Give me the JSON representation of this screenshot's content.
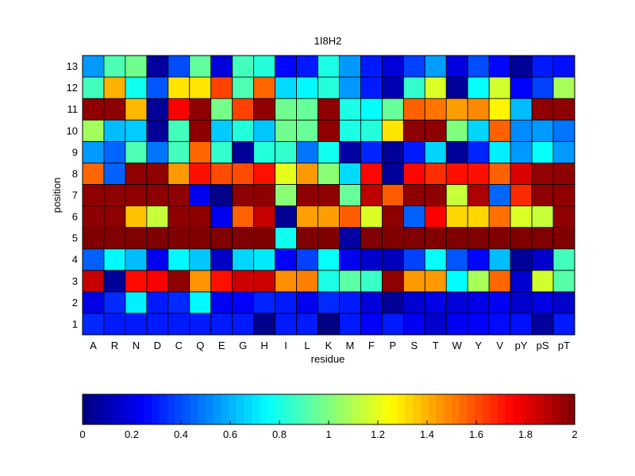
{
  "chart_data": {
    "type": "heatmap",
    "title": "1I8H2",
    "xlabel": "residue",
    "ylabel": "position",
    "x_categories": [
      "A",
      "R",
      "N",
      "D",
      "C",
      "Q",
      "E",
      "G",
      "H",
      "I",
      "L",
      "K",
      "M",
      "F",
      "P",
      "S",
      "T",
      "W",
      "Y",
      "V",
      "pY",
      "pS",
      "pT"
    ],
    "y_categories": [
      "1",
      "2",
      "3",
      "4",
      "5",
      "6",
      "7",
      "8",
      "9",
      "10",
      "11",
      "12",
      "13"
    ],
    "colormap": "jet",
    "clim": [
      0,
      2
    ],
    "colorbar": {
      "location": "bottom",
      "ticks": [
        0,
        0.2,
        0.4,
        0.6,
        0.8,
        1,
        1.2,
        1.4,
        1.6,
        1.8,
        2
      ],
      "tick_labels": [
        "0",
        "0.2",
        "0.4",
        "0.6",
        "0.8",
        "1",
        "1.2",
        "1.4",
        "1.6",
        "1.8",
        "2"
      ]
    },
    "values": [
      [
        0.33,
        0.3,
        0.3,
        0.3,
        0.3,
        0.3,
        0.3,
        0.3,
        0.02,
        0.3,
        0.3,
        0.0,
        0.3,
        0.25,
        0.3,
        0.23,
        0.15,
        0.23,
        0.25,
        0.27,
        0.28,
        0.06,
        0.3
      ],
      [
        0.2,
        0.33,
        0.72,
        0.3,
        0.33,
        0.74,
        0.23,
        0.25,
        0.32,
        0.3,
        0.22,
        0.33,
        0.3,
        0.18,
        0.05,
        0.16,
        0.2,
        0.18,
        0.2,
        0.23,
        0.15,
        0.2,
        0.15
      ],
      [
        1.86,
        0.05,
        1.73,
        1.76,
        1.97,
        1.46,
        1.72,
        1.85,
        1.85,
        1.47,
        1.5,
        0.8,
        0.93,
        0.86,
        1.97,
        1.45,
        1.45,
        0.75,
        1.08,
        1.55,
        0.16,
        1.16,
        0.92
      ],
      [
        0.44,
        0.74,
        0.62,
        0.22,
        0.74,
        0.64,
        0.14,
        0.67,
        0.71,
        0.25,
        0.38,
        0.76,
        0.22,
        0.15,
        0.12,
        0.38,
        0.76,
        0.42,
        0.26,
        0.62,
        0.05,
        0.15,
        0.88
      ],
      [
        2.0,
        2.0,
        2.0,
        2.0,
        2.0,
        2.0,
        2.0,
        2.0,
        2.0,
        0.78,
        2.0,
        2.0,
        0.07,
        2.0,
        2.0,
        2.0,
        2.0,
        2.0,
        2.0,
        2.0,
        2.0,
        2.0,
        2.0
      ],
      [
        1.97,
        1.97,
        1.37,
        1.14,
        1.97,
        1.97,
        0.22,
        1.56,
        1.86,
        0.04,
        1.44,
        1.44,
        1.57,
        1.18,
        1.97,
        0.44,
        1.75,
        1.33,
        1.33,
        1.53,
        1.18,
        1.14,
        1.97
      ],
      [
        1.97,
        1.97,
        1.97,
        1.97,
        1.97,
        0.22,
        0.02,
        1.97,
        1.97,
        1.02,
        1.97,
        1.97,
        0.95,
        1.88,
        1.57,
        1.97,
        1.97,
        1.14,
        1.91,
        0.45,
        1.67,
        1.97,
        1.97
      ],
      [
        1.55,
        0.44,
        1.97,
        1.97,
        1.45,
        1.72,
        1.6,
        1.6,
        1.72,
        1.2,
        1.45,
        1.02,
        0.68,
        1.74,
        0.05,
        1.74,
        1.66,
        1.72,
        1.72,
        1.56,
        1.82,
        1.96,
        1.97
      ],
      [
        0.55,
        0.45,
        0.9,
        0.48,
        0.88,
        1.55,
        0.85,
        0.05,
        0.82,
        0.85,
        0.48,
        0.78,
        0.07,
        0.32,
        0.05,
        0.3,
        0.67,
        0.05,
        0.32,
        0.72,
        0.55,
        0.76,
        0.55
      ],
      [
        1.07,
        0.62,
        0.65,
        0.05,
        0.88,
        1.97,
        0.65,
        0.82,
        0.64,
        0.97,
        0.95,
        1.97,
        0.8,
        0.82,
        1.3,
        1.97,
        1.97,
        1.0,
        0.67,
        1.56,
        0.52,
        0.55,
        0.48
      ],
      [
        1.97,
        1.97,
        1.39,
        0.05,
        1.76,
        1.97,
        0.98,
        1.62,
        1.97,
        0.97,
        0.95,
        1.97,
        0.8,
        0.75,
        0.95,
        1.56,
        1.52,
        1.44,
        1.48,
        1.27,
        0.62,
        1.97,
        1.97
      ],
      [
        0.88,
        1.4,
        0.78,
        0.42,
        1.3,
        1.3,
        1.62,
        0.9,
        1.55,
        0.68,
        0.74,
        0.82,
        0.55,
        0.3,
        0.1,
        0.85,
        1.18,
        0.05,
        0.76,
        1.16,
        0.25,
        0.38,
        1.08
      ],
      [
        0.55,
        0.9,
        0.97,
        0.06,
        0.4,
        0.94,
        0.18,
        0.88,
        0.82,
        0.26,
        0.3,
        0.8,
        0.55,
        0.3,
        0.18,
        0.38,
        0.56,
        0.19,
        0.4,
        0.26,
        0.05,
        0.3,
        0.28
      ]
    ]
  }
}
